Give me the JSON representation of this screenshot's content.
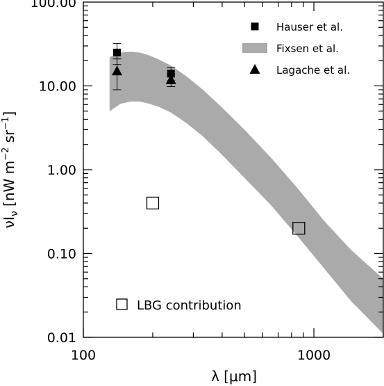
{
  "chart_data": {
    "type": "scatter",
    "x_scale": "log",
    "y_scale": "log",
    "xlim": [
      100,
      2000
    ],
    "ylim": [
      0.01,
      100
    ],
    "x_ticks": [
      {
        "value": 100,
        "label": "100"
      },
      {
        "value": 1000,
        "label": "1000"
      }
    ],
    "y_ticks": [
      {
        "value": 0.01,
        "label": "0.01"
      },
      {
        "value": 0.1,
        "label": "0.10"
      },
      {
        "value": 1,
        "label": "1.00"
      },
      {
        "value": 10,
        "label": "10.00"
      },
      {
        "value": 100,
        "label": "100.00"
      }
    ],
    "xlabel": "λ [μm]",
    "ylabel": "νI",
    "ylabel_sub": "ν",
    "ylabel_units": " [nW m",
    "ylabel_exp1": "−2",
    "ylabel_mid": " sr",
    "ylabel_exp2": "−1",
    "ylabel_close": "]",
    "grid": false,
    "legend_position": "top-right",
    "legend": [
      {
        "name": "Hauser et al.",
        "marker": "filled-square"
      },
      {
        "name": "Fixsen et al.",
        "marker": "band"
      },
      {
        "name": "Lagache et al.",
        "marker": "filled-triangle"
      }
    ],
    "series": [
      {
        "name": "Hauser et al.",
        "marker": "filled-square",
        "points": [
          {
            "x": 140,
            "y": 25,
            "err_low": 18,
            "err_high": 32
          },
          {
            "x": 240,
            "y": 14,
            "err_low": 11.5,
            "err_high": 16.5
          }
        ]
      },
      {
        "name": "Fixsen et al.",
        "marker": "band",
        "color": "#aaaaaa",
        "x": [
          130,
          145,
          160,
          175,
          190,
          210,
          240,
          280,
          330,
          400,
          500,
          650,
          850,
          1100,
          1450,
          2000
        ],
        "upper": [
          22,
          25,
          25.5,
          25,
          23.5,
          21,
          17.5,
          13,
          9,
          5.5,
          3,
          1.4,
          0.6,
          0.25,
          0.11,
          0.05
        ],
        "lower": [
          5,
          6.1,
          6.5,
          6.5,
          6.2,
          5.7,
          4.8,
          3.6,
          2.5,
          1.5,
          0.8,
          0.38,
          0.16,
          0.068,
          0.027,
          0.011
        ]
      },
      {
        "name": "Lagache et al.",
        "marker": "filled-triangle",
        "points": [
          {
            "x": 140,
            "y": 15,
            "err_low": 9,
            "err_high": 21
          },
          {
            "x": 240,
            "y": 11.8,
            "err_low": 9.8,
            "err_high": 13.8
          }
        ]
      },
      {
        "name": "LBG contribution",
        "marker": "open-square",
        "points": [
          {
            "x": 200,
            "y": 0.4
          },
          {
            "x": 860,
            "y": 0.2
          }
        ]
      }
    ],
    "annotation": {
      "text": "LBG contribution",
      "marker": "open-square"
    }
  }
}
